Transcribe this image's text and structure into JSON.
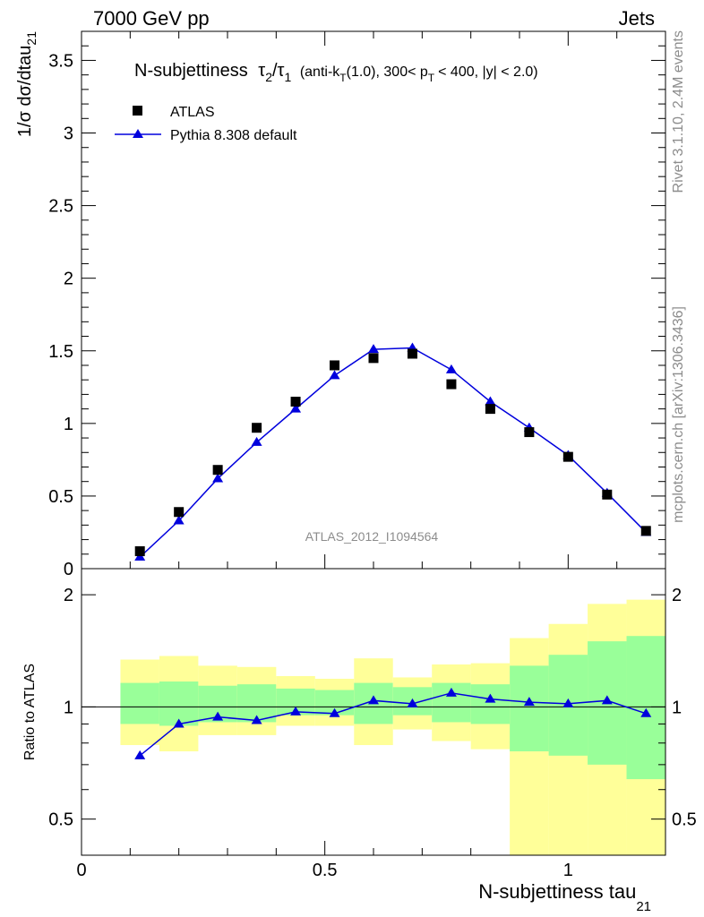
{
  "header": {
    "left": "7000 GeV pp",
    "right": "Jets"
  },
  "side": {
    "rivet": "Rivet 3.1.10,  2.4M events",
    "mcplots": "mcplots.cern.ch [arXiv:1306.3436]"
  },
  "title": {
    "main": "N-subjettiness",
    "tau_a": "τ",
    "sub_a": "2",
    "slash": "/",
    "tau_b": "τ",
    "sub_b": "1",
    "cuts_a": "(anti-k",
    "cuts_sub_t1": "T",
    "cuts_b": "(1.0), 300< p",
    "cuts_sub_t2": "T",
    "cuts_c": "< 400, |y| < 2.0)"
  },
  "legend": {
    "data_label": "ATLAS",
    "mc_label": "Pythia 8.308 default"
  },
  "watermark": "ATLAS_2012_I1094564",
  "axes": {
    "ylabel_main": "1/σ dσ/dtau",
    "ylabel_main_sub": "21",
    "ylabel_ratio": "Ratio to ATLAS",
    "xlabel": "N-subjettiness tau",
    "xlabel_sub": "21",
    "main_yticks": [
      "0",
      "0.5",
      "1",
      "1.5",
      "2",
      "2.5",
      "3",
      "3.5"
    ],
    "ratio_yticks": [
      "0.5",
      "1",
      "2"
    ],
    "xticks": [
      "0",
      "0.5",
      "1"
    ]
  },
  "colors": {
    "mc_line": "#0000dd",
    "band_inner": "#99ff99",
    "band_outer": "#ffff99",
    "data_marker": "#000000"
  },
  "chart_data": [
    {
      "type": "scatter",
      "panel": "main",
      "xlim": [
        0,
        1.2
      ],
      "ylim": [
        0,
        3.7
      ],
      "x": [
        0.12,
        0.2,
        0.28,
        0.36,
        0.44,
        0.52,
        0.6,
        0.68,
        0.76,
        0.84,
        0.92,
        1.0,
        1.08,
        1.16
      ],
      "series": [
        {
          "name": "ATLAS",
          "marker": "square",
          "values": [
            0.12,
            0.39,
            0.68,
            0.97,
            1.15,
            1.4,
            1.45,
            1.48,
            1.27,
            1.1,
            0.94,
            0.77,
            0.51,
            0.26
          ]
        },
        {
          "name": "Pythia 8.308 default",
          "marker": "triangle",
          "values": [
            0.08,
            0.33,
            0.62,
            0.87,
            1.1,
            1.33,
            1.51,
            1.52,
            1.37,
            1.15,
            0.97,
            0.78,
            0.52,
            0.25
          ]
        }
      ]
    },
    {
      "type": "line",
      "panel": "ratio",
      "xlim": [
        0,
        1.2
      ],
      "ylim": [
        0.4,
        2.35
      ],
      "scale": "log",
      "x": [
        0.12,
        0.2,
        0.28,
        0.36,
        0.44,
        0.52,
        0.6,
        0.68,
        0.76,
        0.84,
        0.92,
        1.0,
        1.08,
        1.16
      ],
      "bin_edges": [
        0.08,
        0.16,
        0.24,
        0.32,
        0.4,
        0.48,
        0.56,
        0.64,
        0.72,
        0.8,
        0.88,
        0.96,
        1.04,
        1.12,
        1.2
      ],
      "series": [
        {
          "name": "Pythia 8.308 default",
          "values": [
            0.74,
            0.9,
            0.94,
            0.92,
            0.97,
            0.96,
            1.04,
            1.02,
            1.09,
            1.05,
            1.03,
            1.02,
            1.04,
            0.96
          ]
        }
      ],
      "band_inner": {
        "low": [
          0.9,
          0.89,
          0.91,
          0.91,
          0.95,
          0.95,
          0.9,
          0.95,
          0.91,
          0.9,
          0.76,
          0.74,
          0.7,
          0.64
        ],
        "high": [
          1.16,
          1.17,
          1.14,
          1.15,
          1.12,
          1.11,
          1.16,
          1.13,
          1.16,
          1.15,
          1.29,
          1.38,
          1.5,
          1.55
        ]
      },
      "band_outer": {
        "low": [
          0.79,
          0.76,
          0.84,
          0.84,
          0.89,
          0.89,
          0.79,
          0.87,
          0.81,
          0.77,
          0.38,
          0.36,
          0.34,
          0.32
        ],
        "high": [
          1.34,
          1.37,
          1.29,
          1.28,
          1.21,
          1.19,
          1.35,
          1.2,
          1.3,
          1.31,
          1.53,
          1.67,
          1.89,
          1.94
        ]
      },
      "reference_line": 1
    }
  ]
}
